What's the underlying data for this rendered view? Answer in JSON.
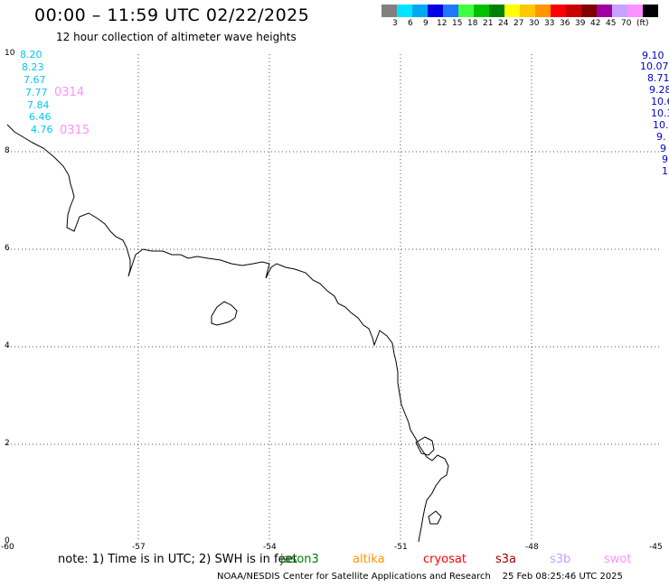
{
  "title": "00:00 – 11:59 UTC 02/22/2025",
  "subtitle": "12 hour collection of altimeter wave heights",
  "scale": {
    "colors": [
      "#808080",
      "#00e5ff",
      "#00a8f0",
      "#0000e6",
      "#1e78ff",
      "#40ff40",
      "#00c000",
      "#008000",
      "#ffff00",
      "#ffc800",
      "#ff9600",
      "#ff0000",
      "#c80000",
      "#800000",
      "#a000a0",
      "#c8a0ff",
      "#ff90ff",
      "#000000"
    ],
    "labels": [
      "3",
      "6",
      "9",
      "12",
      "15",
      "18",
      "21",
      "24",
      "27",
      "30",
      "33",
      "36",
      "39",
      "42",
      "45",
      "70",
      "(ft)"
    ]
  },
  "y_ticks": [
    "10",
    "8",
    "6",
    "4",
    "2",
    "0"
  ],
  "x_ticks": [
    "-60",
    "-57",
    "-54",
    "-51",
    "-48",
    "-45"
  ],
  "left_values": [
    "8.20",
    "8.23",
    "7.67",
    "7.77",
    "7.84",
    "6.46",
    "4.76"
  ],
  "left_time_labels": [
    "0314",
    "0315"
  ],
  "right_values": [
    "9.10",
    "10.07",
    "8.71",
    "9.28",
    "10.6",
    "10.3",
    "10.",
    "9.",
    "9",
    "9",
    "1"
  ],
  "footer": {
    "note": "note: 1) Time is in UTC; 2) SWH is in feet",
    "satellites": [
      {
        "name": "jason3",
        "color": "#008000"
      },
      {
        "name": "altika",
        "color": "#ff9600"
      },
      {
        "name": "cryosat",
        "color": "#ff0000"
      },
      {
        "name": "s3a",
        "color": "#a00000"
      },
      {
        "name": "s3b",
        "color": "#c8a0ff"
      },
      {
        "name": "swot",
        "color": "#ff90ff"
      }
    ],
    "credit": "NOAA/NESDIS Center for Satellite Applications and Research",
    "timestamp": "25 Feb 08:25:46 UTC 2025"
  },
  "colors": {
    "cyan_values": "#00c8f0",
    "right_values": "#0000c8",
    "time_labels": "#ff90ff"
  }
}
